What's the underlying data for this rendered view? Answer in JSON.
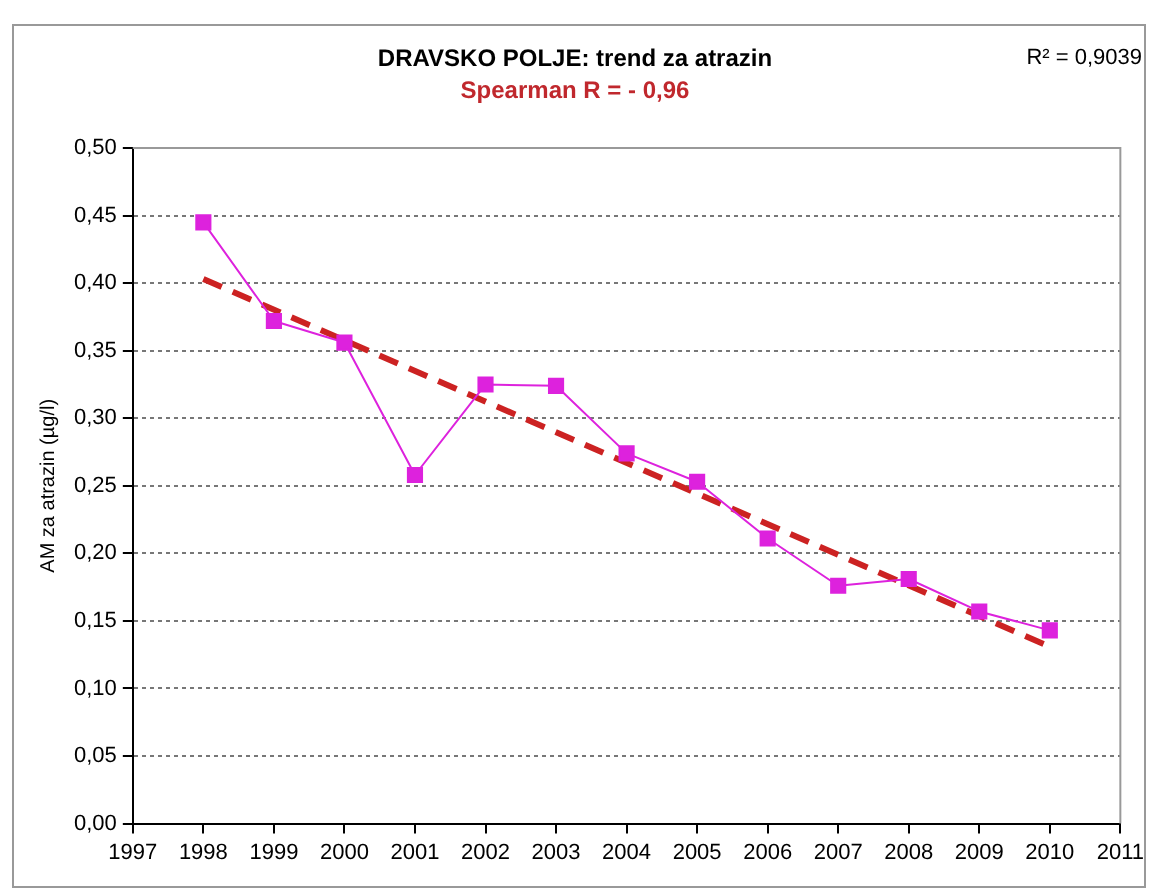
{
  "chart_data": {
    "type": "line",
    "title": "DRAVSKO POLJE: trend za atrazin",
    "subtitle": "Spearman R = - 0,96",
    "ylabel": "AM za atrazin (µg/l)",
    "annotations": [
      "R² = 0,9039"
    ],
    "x": [
      1998,
      1999,
      2000,
      2001,
      2002,
      2003,
      2004,
      2005,
      2006,
      2007,
      2008,
      2009,
      2010
    ],
    "series": [
      {
        "color": "#dd22dd",
        "marker": "square",
        "values": [
          0.445,
          0.372,
          0.356,
          0.258,
          0.325,
          0.324,
          0.274,
          0.253,
          0.211,
          0.176,
          0.181,
          0.157,
          0.143
        ]
      },
      {
        "color": "#cc2222",
        "marker": "none",
        "line_style": "dashed",
        "x": [
          1998,
          2010
        ],
        "values": [
          0.403,
          0.131
        ]
      }
    ],
    "xlim": [
      1997,
      2011
    ],
    "xticks": [
      1997,
      1998,
      1999,
      2000,
      2001,
      2002,
      2003,
      2004,
      2005,
      2006,
      2007,
      2008,
      2009,
      2010,
      2011
    ],
    "ylim": [
      0,
      0.5
    ],
    "yticks": [
      {
        "value": 0,
        "label": "0,00"
      },
      {
        "value": 0.05,
        "label": "0,05"
      },
      {
        "value": 0.1,
        "label": "0,10"
      },
      {
        "value": 0.15,
        "label": "0,15"
      },
      {
        "value": 0.2,
        "label": "0,20"
      },
      {
        "value": 0.25,
        "label": "0,25"
      },
      {
        "value": 0.3,
        "label": "0,30"
      },
      {
        "value": 0.35,
        "label": "0,35"
      },
      {
        "value": 0.4,
        "label": "0,40"
      },
      {
        "value": 0.45,
        "label": "0,45"
      },
      {
        "value": 0.5,
        "label": "0,50"
      }
    ],
    "grid": "y",
    "legend": false
  }
}
